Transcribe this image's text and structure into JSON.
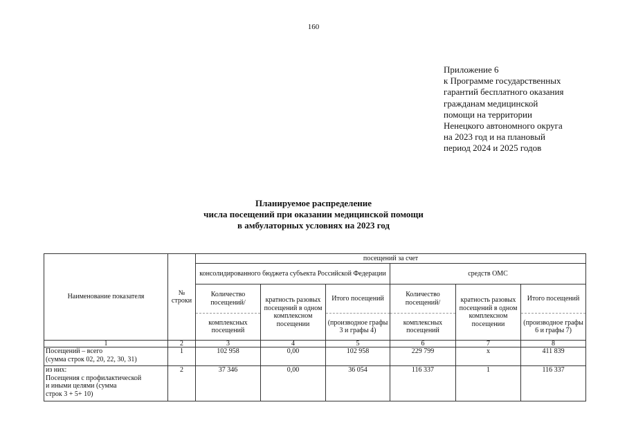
{
  "page_number": "160",
  "appendix": {
    "lines": [
      "Приложение 6",
      "к Программе государственных",
      "гарантий бесплатного оказания",
      "гражданам медицинской",
      "помощи на территории",
      "Ненецкого автономного округа",
      "на 2023 год и на плановый",
      "период 2024 и 2025 годов"
    ]
  },
  "title": {
    "lines": [
      "Планируемое распределение",
      "числа посещений при оказании медицинской помощи",
      "в амбулаторных условиях на 2023 год"
    ]
  },
  "table": {
    "header": {
      "name": "Наименование показателя",
      "row_no": "№ строки",
      "visits_by": "посещений за счет",
      "budget": "консолидированного бюджета субъекта Российской Федерации",
      "oms": "средств ОМС",
      "count_top": "Количество посещений/",
      "count_bottom": "комплексных посещений",
      "ratio": "кратность разовых посещений в одном комплексном посещении",
      "total_top": "Итого посещений",
      "total_bottom_budget": "(производное графы 3 и графы 4)",
      "total_bottom_oms": "(производное графы 6 и графы 7)"
    },
    "column_numbers": [
      "1",
      "2",
      "3",
      "4",
      "5",
      "6",
      "7",
      "8"
    ],
    "rows": [
      {
        "name": "Посещений – всего\n(сумма строк 02, 20, 22, 30, 31)",
        "cells": [
          "1",
          "102 958",
          "0,00",
          "102 958",
          "229 799",
          "x",
          "411 839"
        ]
      },
      {
        "name": "из них:\nПосещения с профилактической\nи иными целями (сумма\nстрок 3 + 5+ 10)",
        "cells": [
          "2",
          "37 346",
          "0,00",
          "36 054",
          "116 337",
          "1",
          "116 337"
        ]
      }
    ]
  }
}
